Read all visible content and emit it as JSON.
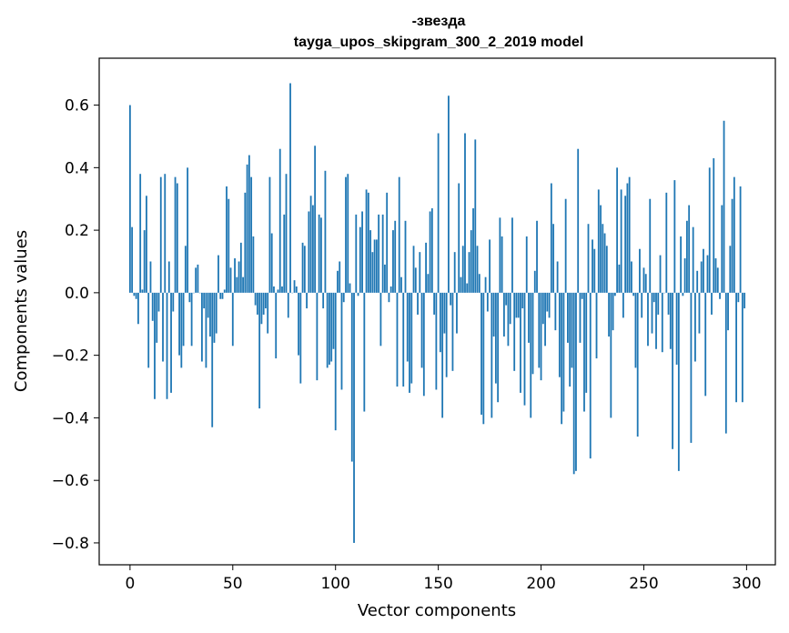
{
  "chart_data": {
    "type": "bar",
    "title": "-звезда",
    "subtitle": "tayga_upos_skipgram_300_2_2019 model",
    "xlabel": "Vector components",
    "ylabel": "Components values",
    "xlim": [
      -15,
      314
    ],
    "ylim": [
      -0.87,
      0.75
    ],
    "xticks": [
      0,
      50,
      100,
      150,
      200,
      250,
      300
    ],
    "xtick_labels": [
      "0",
      "50",
      "100",
      "150",
      "200",
      "250",
      "300"
    ],
    "yticks": [
      -0.8,
      -0.6,
      -0.4,
      -0.2,
      0.0,
      0.2,
      0.4,
      0.6
    ],
    "ytick_labels": [
      "−0.8",
      "−0.6",
      "−0.4",
      "−0.2",
      "0.0",
      "0.2",
      "0.4",
      "0.6"
    ],
    "bar_color": "#1f77b4",
    "grid": false,
    "values": [
      0.6,
      0.21,
      -0.01,
      -0.02,
      -0.1,
      0.38,
      0.01,
      0.2,
      0.31,
      -0.24,
      0.1,
      -0.09,
      -0.34,
      -0.16,
      -0.06,
      0.37,
      -0.22,
      0.38,
      -0.34,
      0.1,
      -0.32,
      -0.06,
      0.37,
      0.35,
      -0.2,
      -0.24,
      -0.17,
      0.15,
      0.4,
      -0.03,
      -0.17,
      0.0,
      0.08,
      0.09,
      0.0,
      -0.22,
      -0.05,
      -0.24,
      -0.08,
      -0.14,
      -0.43,
      -0.16,
      -0.13,
      0.12,
      -0.02,
      -0.02,
      0.01,
      0.34,
      0.3,
      0.08,
      -0.17,
      0.11,
      0.05,
      0.1,
      0.16,
      0.05,
      0.32,
      0.41,
      0.44,
      0.37,
      0.18,
      -0.04,
      -0.07,
      -0.37,
      -0.1,
      -0.07,
      -0.05,
      -0.13,
      0.37,
      0.19,
      0.02,
      -0.21,
      0.01,
      0.46,
      0.02,
      0.25,
      0.38,
      -0.08,
      0.67,
      0.0,
      0.04,
      0.02,
      -0.2,
      -0.29,
      0.16,
      0.15,
      -0.05,
      0.26,
      0.31,
      0.28,
      0.47,
      -0.28,
      0.25,
      0.24,
      -0.05,
      0.39,
      -0.24,
      -0.23,
      -0.22,
      -0.18,
      -0.44,
      0.07,
      0.1,
      -0.31,
      -0.03,
      0.37,
      0.38,
      0.03,
      -0.54,
      -0.8,
      0.25,
      -0.01,
      0.21,
      0.26,
      -0.38,
      0.33,
      0.32,
      0.2,
      0.13,
      0.17,
      0.17,
      0.25,
      -0.17,
      0.25,
      0.09,
      0.32,
      -0.03,
      0.02,
      0.2,
      0.23,
      -0.3,
      0.37,
      0.05,
      -0.3,
      0.23,
      -0.22,
      -0.32,
      -0.29,
      0.15,
      0.08,
      -0.07,
      0.13,
      -0.24,
      -0.33,
      0.16,
      0.06,
      0.26,
      0.27,
      -0.07,
      -0.31,
      0.51,
      -0.19,
      -0.4,
      -0.13,
      -0.27,
      0.63,
      -0.04,
      -0.25,
      0.13,
      -0.13,
      0.35,
      0.05,
      0.15,
      0.51,
      0.03,
      0.13,
      0.2,
      0.27,
      0.49,
      0.15,
      0.06,
      -0.39,
      -0.42,
      0.05,
      -0.06,
      0.17,
      -0.4,
      -0.14,
      -0.29,
      -0.35,
      0.24,
      0.18,
      -0.14,
      -0.04,
      -0.17,
      -0.1,
      0.24,
      -0.25,
      -0.08,
      -0.08,
      -0.32,
      -0.05,
      -0.36,
      0.18,
      -0.16,
      -0.4,
      -0.26,
      0.07,
      0.23,
      -0.24,
      -0.28,
      -0.1,
      -0.17,
      -0.06,
      -0.08,
      0.35,
      0.22,
      -0.12,
      0.1,
      -0.27,
      -0.42,
      -0.38,
      0.3,
      -0.16,
      -0.3,
      -0.24,
      -0.58,
      -0.57,
      0.46,
      -0.16,
      -0.02,
      -0.38,
      -0.32,
      0.22,
      -0.53,
      0.17,
      0.14,
      -0.21,
      0.33,
      0.28,
      0.22,
      0.19,
      0.15,
      -0.14,
      -0.4,
      -0.12,
      -0.01,
      0.4,
      0.09,
      0.33,
      -0.08,
      0.31,
      0.35,
      0.37,
      0.1,
      -0.01,
      -0.24,
      -0.46,
      0.14,
      -0.08,
      0.08,
      0.06,
      -0.17,
      0.3,
      -0.13,
      -0.03,
      -0.18,
      -0.07,
      0.12,
      -0.19,
      0.0,
      0.32,
      -0.07,
      -0.18,
      -0.5,
      0.36,
      -0.23,
      -0.57,
      0.18,
      -0.01,
      0.11,
      0.23,
      0.28,
      -0.48,
      0.21,
      -0.22,
      0.07,
      -0.13,
      0.1,
      0.14,
      -0.33,
      0.12,
      0.4,
      -0.07,
      0.43,
      0.11,
      0.08,
      -0.02,
      0.28,
      0.55,
      -0.45,
      -0.12,
      0.15,
      0.3,
      0.37,
      -0.35,
      -0.03,
      0.34,
      -0.35,
      -0.05
    ]
  }
}
